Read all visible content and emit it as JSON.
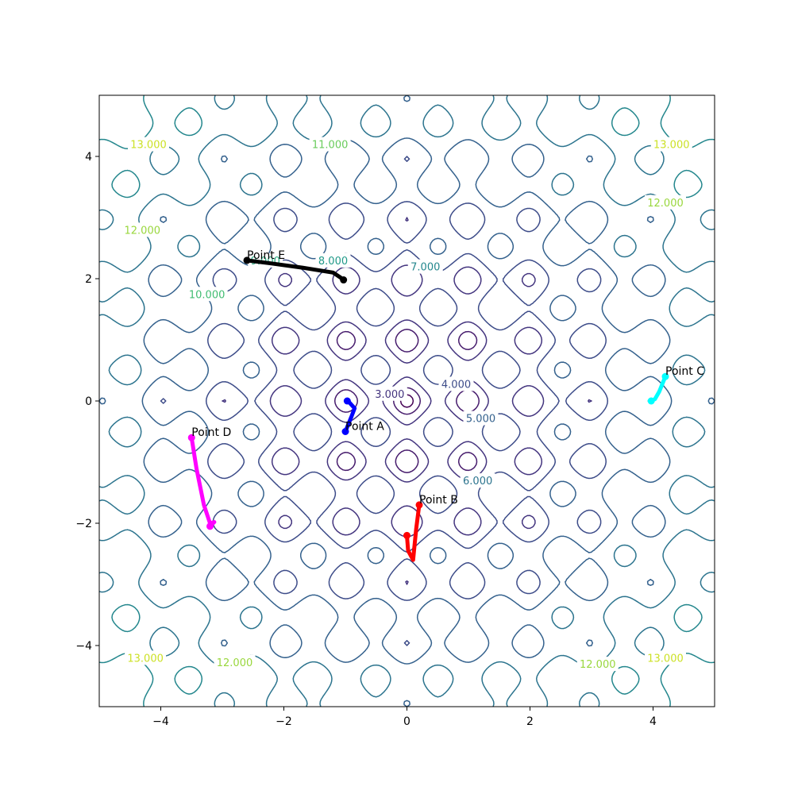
{
  "chart_data": {
    "type": "contour",
    "title": "",
    "xlabel": "",
    "ylabel": "",
    "xlim": [
      -5,
      5
    ],
    "ylim": [
      -5,
      5
    ],
    "grid": false,
    "x_ticks": [
      -4,
      -2,
      0,
      2,
      4
    ],
    "y_ticks": [
      -4,
      -2,
      0,
      2,
      4
    ],
    "x_tick_labels": [
      "−4",
      "−2",
      "0",
      "2",
      "4"
    ],
    "y_tick_labels": [
      "−4",
      "−2",
      "0",
      "2",
      "4"
    ],
    "contour_levels": [
      1,
      2,
      3,
      4,
      5,
      6,
      7,
      8,
      9,
      10,
      11,
      12,
      13,
      14
    ],
    "contour_labels": [
      {
        "text": "3.000",
        "x": -0.28,
        "y": 0.12
      },
      {
        "text": "4.000",
        "x": 0.8,
        "y": 0.28
      },
      {
        "text": "5.000",
        "x": 1.2,
        "y": -0.28
      },
      {
        "text": "6.000",
        "x": 1.15,
        "y": -1.3
      },
      {
        "text": "7.000",
        "x": 0.3,
        "y": 2.2
      },
      {
        "text": "8.000",
        "x": -1.2,
        "y": 2.3
      },
      {
        "text": "9.000",
        "x": -2.3,
        "y": 2.3
      },
      {
        "text": "10.000",
        "x": -3.25,
        "y": 1.75
      },
      {
        "text": "11.000",
        "x": -1.25,
        "y": 4.2
      },
      {
        "text": "12.000",
        "x": -4.3,
        "y": 2.8
      },
      {
        "text": "12.000",
        "x": 4.2,
        "y": 3.25
      },
      {
        "text": "12.000",
        "x": -2.8,
        "y": -4.27
      },
      {
        "text": "12.000",
        "x": 3.1,
        "y": -4.3
      },
      {
        "text": "13.000",
        "x": -4.2,
        "y": 4.2
      },
      {
        "text": "13.000",
        "x": 4.3,
        "y": 4.2
      },
      {
        "text": "13.000",
        "x": -4.25,
        "y": -4.2
      },
      {
        "text": "13.000",
        "x": 4.2,
        "y": -4.2
      }
    ],
    "paths": [
      {
        "name": "Point A",
        "color": "#0000ff",
        "points": [
          [
            -1.0,
            -0.5
          ],
          [
            -0.9,
            -0.25
          ],
          [
            -0.85,
            -0.12
          ],
          [
            -0.93,
            -0.03
          ],
          [
            -0.97,
            0.0
          ]
        ]
      },
      {
        "name": "Point B",
        "color": "#ff0000",
        "points": [
          [
            0.2,
            -1.7
          ],
          [
            0.15,
            -2.1
          ],
          [
            0.12,
            -2.4
          ],
          [
            0.1,
            -2.6
          ],
          [
            0.02,
            -2.45
          ],
          [
            0.0,
            -2.2
          ]
        ]
      },
      {
        "name": "Point C",
        "color": "#00ffff",
        "points": [
          [
            4.2,
            0.4
          ],
          [
            4.1,
            0.15
          ],
          [
            4.03,
            0.03
          ],
          [
            3.97,
            0.0
          ]
        ]
      },
      {
        "name": "Point D",
        "color": "#ff00ff",
        "points": [
          [
            -3.5,
            -0.6
          ],
          [
            -3.42,
            -1.1
          ],
          [
            -3.3,
            -1.7
          ],
          [
            -3.2,
            -2.0
          ],
          [
            -3.13,
            -1.98
          ],
          [
            -3.2,
            -2.05
          ]
        ]
      },
      {
        "name": "Point E",
        "color": "#000000",
        "points": [
          [
            -2.6,
            2.3
          ],
          [
            -2.2,
            2.25
          ],
          [
            -1.7,
            2.18
          ],
          [
            -1.2,
            2.1
          ],
          [
            -1.08,
            2.02
          ],
          [
            -1.03,
            1.98
          ]
        ]
      }
    ]
  }
}
